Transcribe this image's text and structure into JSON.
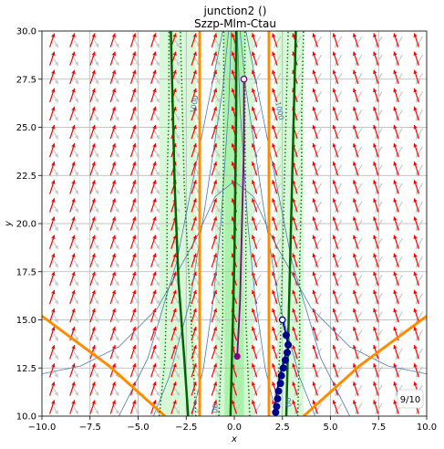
{
  "chart_data": {
    "type": "line",
    "title": "junction2 ()",
    "subtitle": "Szzp-Mlm-Ctau",
    "xlabel": "x",
    "ylabel": "y",
    "xlim": [
      -10,
      10
    ],
    "ylim": [
      10,
      30
    ],
    "xticks": [
      "−10.0",
      "−7.5",
      "−5.0",
      "−2.5",
      "0.0",
      "2.5",
      "5.0",
      "7.5",
      "10.0"
    ],
    "yticks": [
      "10.0",
      "12.5",
      "15.0",
      "17.5",
      "20.0",
      "22.5",
      "25.0",
      "27.5",
      "30.0"
    ],
    "grid": true,
    "badge": "9/10",
    "contour_labels": [
      "1000",
      "1000",
      "00",
      "00"
    ],
    "colors": {
      "arrow": "#ff0000",
      "arrow_ghost": "#c8c8c8",
      "boundary": "#ff8c00",
      "green_curve": "#006400",
      "green_dotted": "#008000",
      "band": "#90ee90",
      "contour": "#4a7ab0",
      "purple": "#800080",
      "navy": "#00008b"
    },
    "series": [
      {
        "kind": "contour",
        "points": [
          [
            -10,
            12.2
          ],
          [
            -8,
            12.6
          ],
          [
            -6,
            13.6
          ],
          [
            -4,
            15.6
          ],
          [
            -2,
            19.2
          ],
          [
            -1,
            21.4
          ],
          [
            0,
            22.2
          ],
          [
            1,
            21.4
          ],
          [
            2,
            19.2
          ],
          [
            4,
            15.6
          ],
          [
            6,
            13.6
          ],
          [
            8,
            12.6
          ],
          [
            10,
            12.2
          ]
        ]
      },
      {
        "kind": "contour",
        "points": [
          [
            -6,
            10
          ],
          [
            -4.5,
            13
          ],
          [
            -3,
            18
          ],
          [
            -2,
            23
          ],
          [
            -1,
            28
          ],
          [
            -0.6,
            30
          ]
        ]
      },
      {
        "kind": "contour",
        "points": [
          [
            6,
            10
          ],
          [
            4.5,
            13
          ],
          [
            3,
            18
          ],
          [
            2,
            23
          ],
          [
            1,
            28
          ],
          [
            0.6,
            30
          ]
        ]
      },
      {
        "kind": "contour",
        "points": [
          [
            -4.2,
            10
          ],
          [
            -3.4,
            12
          ],
          [
            -2.3,
            16
          ],
          [
            -1.5,
            21
          ],
          [
            -0.6,
            27
          ],
          [
            -0.3,
            30
          ]
        ]
      },
      {
        "kind": "contour",
        "points": [
          [
            4.2,
            10
          ],
          [
            3.4,
            12
          ],
          [
            2.3,
            16
          ],
          [
            1.5,
            21
          ],
          [
            0.6,
            27
          ],
          [
            0.3,
            30
          ]
        ]
      },
      {
        "kind": "contour",
        "points": [
          [
            -2.2,
            10
          ],
          [
            -1.6,
            12.5
          ],
          [
            -1.1,
            16
          ],
          [
            -0.7,
            20
          ],
          [
            -0.3,
            26
          ],
          [
            -0.15,
            30
          ]
        ]
      },
      {
        "kind": "contour",
        "points": [
          [
            2.2,
            10
          ],
          [
            1.6,
            12.5
          ],
          [
            1.1,
            16
          ],
          [
            0.7,
            20
          ],
          [
            0.3,
            26
          ],
          [
            0.15,
            30
          ]
        ]
      },
      {
        "kind": "boundary",
        "points": [
          [
            -10,
            15.2
          ],
          [
            -6.5,
            12.6
          ],
          [
            -3.6,
            10
          ]
        ]
      },
      {
        "kind": "boundary",
        "points": [
          [
            10,
            15.2
          ],
          [
            6.5,
            12.6
          ],
          [
            3.6,
            10
          ]
        ]
      },
      {
        "kind": "boundary",
        "points": [
          [
            -1.8,
            10
          ],
          [
            -1.8,
            30
          ]
        ]
      },
      {
        "kind": "boundary",
        "points": [
          [
            1.8,
            10
          ],
          [
            1.8,
            30
          ]
        ]
      },
      {
        "kind": "green",
        "points": [
          [
            -2.4,
            10
          ],
          [
            -2.6,
            13
          ],
          [
            -2.9,
            17
          ],
          [
            -3.1,
            22
          ],
          [
            -3.2,
            26
          ],
          [
            -3.3,
            30
          ]
        ]
      },
      {
        "kind": "green",
        "points": [
          [
            2.7,
            10
          ],
          [
            2.8,
            14
          ],
          [
            2.9,
            18
          ],
          [
            3.0,
            22
          ],
          [
            3.1,
            26
          ],
          [
            3.2,
            30
          ]
        ]
      },
      {
        "kind": "green",
        "points": [
          [
            -0.2,
            10
          ],
          [
            -0.1,
            14
          ],
          [
            0,
            18
          ],
          [
            0.05,
            22
          ],
          [
            0.1,
            26
          ],
          [
            0.1,
            30
          ]
        ]
      },
      {
        "kind": "dotted",
        "points": [
          [
            -3.9,
            10
          ],
          [
            -3.6,
            13
          ],
          [
            -3.5,
            17
          ],
          [
            -3.5,
            22
          ],
          [
            -3.4,
            26
          ],
          [
            -3.4,
            30
          ]
        ]
      },
      {
        "kind": "dotted",
        "points": [
          [
            -2.0,
            10
          ],
          [
            -2.2,
            14
          ],
          [
            -2.4,
            18
          ],
          [
            -2.6,
            22
          ],
          [
            -2.7,
            26
          ],
          [
            -2.8,
            30
          ]
        ]
      },
      {
        "kind": "dotted",
        "points": [
          [
            2.2,
            10
          ],
          [
            2.4,
            14
          ],
          [
            2.5,
            18
          ],
          [
            2.6,
            22
          ],
          [
            2.7,
            26
          ],
          [
            2.8,
            30
          ]
        ]
      },
      {
        "kind": "dotted",
        "points": [
          [
            3.3,
            10
          ],
          [
            3.4,
            14
          ],
          [
            3.4,
            18
          ],
          [
            3.5,
            22
          ],
          [
            3.5,
            26
          ],
          [
            3.6,
            30
          ]
        ]
      },
      {
        "kind": "dotted",
        "points": [
          [
            -0.8,
            10
          ],
          [
            -0.6,
            15
          ],
          [
            -0.6,
            20
          ],
          [
            -0.55,
            25
          ],
          [
            -0.55,
            30
          ]
        ]
      },
      {
        "kind": "dotted",
        "points": [
          [
            0.8,
            10
          ],
          [
            0.6,
            15
          ],
          [
            0.6,
            20
          ],
          [
            0.55,
            25
          ],
          [
            0.55,
            30
          ]
        ]
      },
      {
        "kind": "purple",
        "points": [
          [
            0.5,
            27.5
          ],
          [
            0.5,
            24
          ],
          [
            0.4,
            20
          ],
          [
            0.3,
            16
          ],
          [
            0.2,
            14
          ],
          [
            0.15,
            13.1
          ]
        ]
      },
      {
        "kind": "navy",
        "points": [
          [
            2.5,
            15.0
          ],
          [
            2.7,
            14.2
          ],
          [
            2.8,
            13.6
          ],
          [
            2.6,
            13.0
          ],
          [
            2.4,
            12.2
          ],
          [
            2.2,
            11.2
          ],
          [
            2.1,
            10.2
          ]
        ]
      }
    ],
    "markers": [
      {
        "kind": "purple-open",
        "x": 0.5,
        "y": 27.5
      },
      {
        "kind": "purple-filled",
        "x": 0.15,
        "y": 13.1
      },
      {
        "kind": "navy-open",
        "x": 2.5,
        "y": 15.0
      },
      {
        "kind": "navy-filled",
        "x": 2.7,
        "y": 14.2
      },
      {
        "kind": "navy-filled",
        "x": 2.8,
        "y": 13.7
      },
      {
        "kind": "navy-filled",
        "x": 2.75,
        "y": 13.3
      },
      {
        "kind": "navy-filled",
        "x": 2.65,
        "y": 12.9
      },
      {
        "kind": "navy-filled",
        "x": 2.55,
        "y": 12.5
      },
      {
        "kind": "navy-filled",
        "x": 2.45,
        "y": 12.1
      },
      {
        "kind": "navy-filled",
        "x": 2.4,
        "y": 11.7
      },
      {
        "kind": "navy-filled",
        "x": 2.3,
        "y": 11.3
      },
      {
        "kind": "navy-filled",
        "x": 2.25,
        "y": 10.9
      },
      {
        "kind": "navy-filled",
        "x": 2.2,
        "y": 10.5
      },
      {
        "kind": "navy-filled",
        "x": 2.15,
        "y": 10.2
      }
    ],
    "vector_field": {
      "nx": 19,
      "ny": 21
    }
  }
}
